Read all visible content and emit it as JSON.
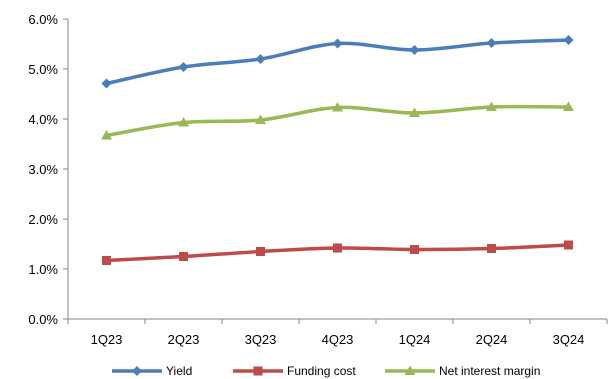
{
  "chart_data": {
    "type": "line",
    "categories": [
      "1Q23",
      "2Q23",
      "3Q23",
      "4Q23",
      "1Q24",
      "2Q24",
      "3Q24"
    ],
    "series": [
      {
        "name": "Yield",
        "values": [
          4.71,
          5.04,
          5.2,
          5.51,
          5.38,
          5.52,
          5.58
        ],
        "color": "#4a7ebb",
        "marker": "diamond"
      },
      {
        "name": "Funding cost",
        "values": [
          1.17,
          1.25,
          1.35,
          1.42,
          1.39,
          1.41,
          1.48
        ],
        "color": "#be4b48",
        "marker": "square"
      },
      {
        "name": "Net interest margin",
        "values": [
          3.67,
          3.93,
          3.98,
          4.23,
          4.12,
          4.24,
          4.24
        ],
        "color": "#98b954",
        "marker": "triangle"
      }
    ],
    "ylim": [
      0,
      6
    ],
    "yticks": [
      "0.0%",
      "1.0%",
      "2.0%",
      "3.0%",
      "4.0%",
      "5.0%",
      "6.0%"
    ],
    "ytick_values": [
      0,
      1,
      2,
      3,
      4,
      5,
      6
    ],
    "xlabel": "",
    "ylabel": "",
    "title": "",
    "grid": false,
    "legend_position": "bottom"
  }
}
